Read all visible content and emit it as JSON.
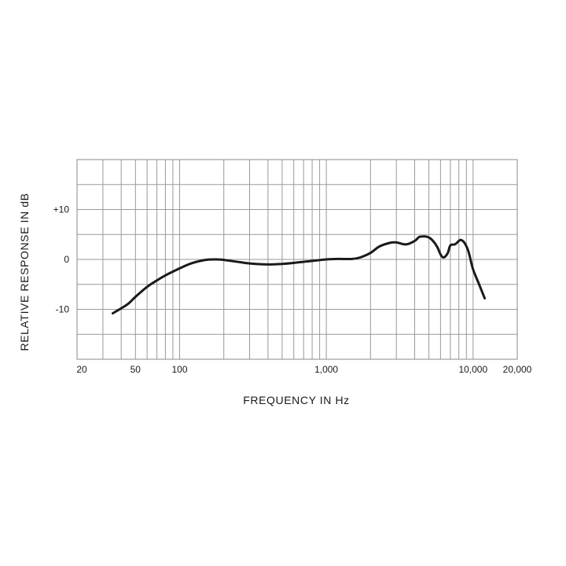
{
  "chart_data": {
    "type": "line",
    "title": "",
    "xlabel": "FREQUENCY IN Hz",
    "ylabel": "RELATIVE RESPONSE IN dB",
    "x_scale": "log",
    "xlim": [
      20,
      20000
    ],
    "ylim": [
      -20,
      20
    ],
    "grid": true,
    "x_ticks": [
      {
        "value": 20,
        "label": "20"
      },
      {
        "value": 50,
        "label": "50"
      },
      {
        "value": 100,
        "label": "100"
      },
      {
        "value": 1000,
        "label": "1,000"
      },
      {
        "value": 10000,
        "label": "10,000"
      },
      {
        "value": 20000,
        "label": "20,000"
      }
    ],
    "y_ticks": [
      {
        "value": 10,
        "label": "+10"
      },
      {
        "value": 0,
        "label": "0"
      },
      {
        "value": -10,
        "label": "-10"
      }
    ],
    "series": [
      {
        "color": "#1a1a1a",
        "x": [
          35,
          40,
          45,
          50,
          60,
          70,
          80,
          100,
          120,
          150,
          180,
          200,
          250,
          300,
          400,
          500,
          600,
          800,
          1000,
          1200,
          1500,
          1700,
          2000,
          2300,
          2700,
          3000,
          3500,
          4000,
          4300,
          4700,
          5000,
          5300,
          5700,
          6000,
          6300,
          6700,
          7000,
          7500,
          7800,
          8200,
          8700,
          9300,
          10000,
          11000,
          12000
        ],
        "y": [
          -10.8,
          -9.8,
          -8.8,
          -7.5,
          -5.5,
          -4.2,
          -3.2,
          -1.8,
          -0.8,
          -0.1,
          0.0,
          -0.1,
          -0.5,
          -0.8,
          -1.0,
          -0.9,
          -0.7,
          -0.3,
          0.0,
          0.1,
          0.1,
          0.4,
          1.3,
          2.6,
          3.3,
          3.4,
          3.0,
          3.7,
          4.5,
          4.6,
          4.4,
          3.8,
          2.5,
          1.0,
          0.4,
          1.2,
          2.8,
          3.0,
          3.4,
          3.9,
          3.4,
          1.6,
          -2.0,
          -5.0,
          -7.8
        ]
      }
    ]
  }
}
